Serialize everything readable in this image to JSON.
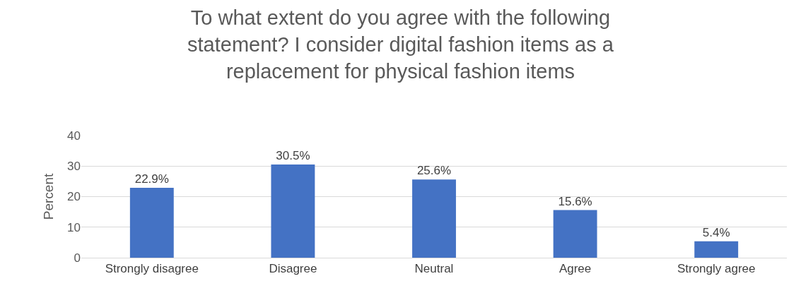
{
  "chart_data": {
    "type": "bar",
    "title": "To what extent do you agree with the following\nstatement? I consider digital fashion items as a\nreplacement for physical fashion items",
    "ylabel": "Percent",
    "categories": [
      "Strongly disagree",
      "Disagree",
      "Neutral",
      "Agree",
      "Strongly agree"
    ],
    "values": [
      22.9,
      30.5,
      25.6,
      15.6,
      5.4
    ],
    "value_labels": [
      "22.9%",
      "30.5%",
      "25.6%",
      "15.6%",
      "5.4%"
    ],
    "color": "#4472c4",
    "ylim": [
      0,
      40
    ],
    "yticks": [
      0,
      10,
      20,
      30,
      40
    ],
    "grid": "y"
  }
}
